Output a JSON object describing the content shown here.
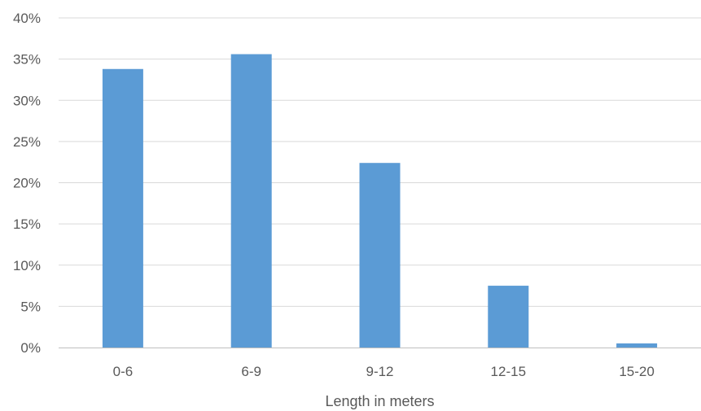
{
  "chart_data": {
    "type": "bar",
    "title": "",
    "xlabel": "Length in meters",
    "ylabel": "",
    "categories": [
      "0-6",
      "6-9",
      "9-12",
      "12-15",
      "15-20"
    ],
    "values": [
      0.338,
      0.356,
      0.224,
      0.075,
      0.005
    ],
    "ylim": [
      0,
      0.4
    ],
    "yticks": [
      0,
      0.05,
      0.1,
      0.15,
      0.2,
      0.25,
      0.3,
      0.35,
      0.4
    ],
    "ytick_labels": [
      "0%",
      "5%",
      "10%",
      "15%",
      "20%",
      "25%",
      "30%",
      "35%",
      "40%"
    ],
    "grid": true,
    "legend": "none",
    "bar_color": "#5b9bd5"
  }
}
